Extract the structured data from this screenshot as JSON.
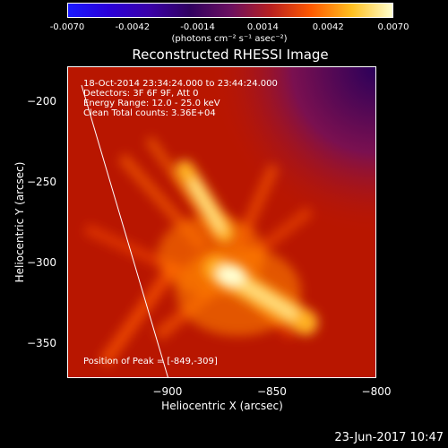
{
  "chart_data": {
    "type": "heatmap",
    "title": "Reconstructed RHESSI Image",
    "xlabel": "Heliocentric X (arcsec)",
    "ylabel": "Heliocentric Y (arcsec)",
    "xlim": [
      -948,
      -800
    ],
    "ylim": [
      -372,
      -178
    ],
    "xticks": [
      -900,
      -850,
      -800
    ],
    "yticks": [
      -200,
      -250,
      -300,
      -350
    ],
    "colorbar": {
      "ticks": [
        "-0.0070",
        "-0.0042",
        "-0.0014",
        "0.0014",
        "0.0042",
        "0.0070"
      ],
      "range": [
        -0.007,
        0.007
      ],
      "unit": "(photons cm⁻² s⁻¹ asec⁻²)"
    },
    "annotations": {
      "time": "18-Oct-2014 23:34:24.000 to 23:44:24.000",
      "detectors": "Detectors: 3F 6F 9F, Att 0",
      "energy": "Energy Range: 12.0 - 25.0 keV",
      "clean": "Clean     Total counts: 3.36E+04",
      "peak": "Position of Peak = [-849,-309]"
    },
    "peak": [
      -849,
      -309
    ]
  },
  "timestamp": "23-Jun-2017 10:47"
}
